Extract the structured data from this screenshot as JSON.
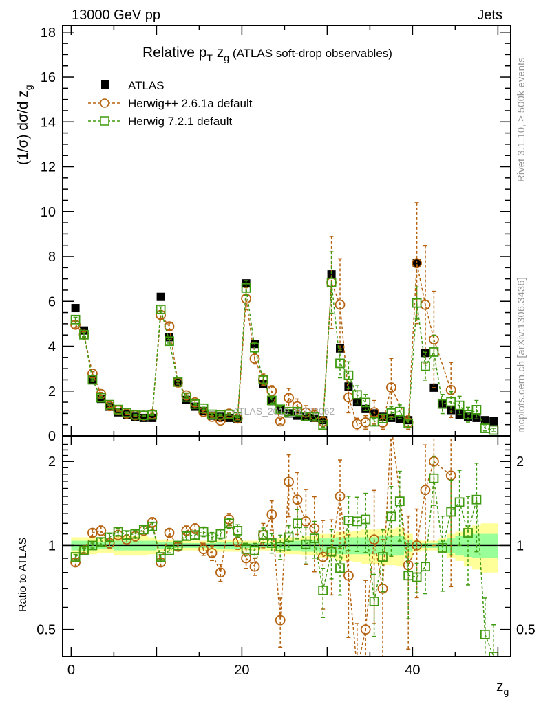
{
  "header": {
    "left": "13000 GeV pp",
    "right": "Jets"
  },
  "side_text": {
    "rivet": "Rivet 3.1.10, ≥ 500k events",
    "mcplots": "mcplots.cern.ch [arXiv:1306.3436]"
  },
  "watermark": "ATLAS_2019_I1772062",
  "chart_data": {
    "type": "scatter",
    "title": {
      "main": "Relative p",
      "sub_T": "T",
      "zg": " z",
      "sub_g": "g",
      "rest": " (ATLAS soft-drop observables)"
    },
    "xlabel": {
      "main": "z",
      "sub": "g"
    },
    "ylabel": {
      "main": "(1/σ) dσ/d z",
      "sub": "g"
    },
    "ratio_ylabel": "Ratio to ATLAS",
    "xlim": [
      -1,
      51.5
    ],
    "ylim": [
      0,
      18.3
    ],
    "ratio_ylim": [
      0.4,
      2.47
    ],
    "ratio_scale": "log",
    "x_ticks": [
      "0",
      "20",
      "40"
    ],
    "y_ticks": [
      "0",
      "2",
      "4",
      "6",
      "8",
      "10",
      "12",
      "14",
      "16",
      "18"
    ],
    "ratio_ticks": [
      "0.5",
      "1",
      "2"
    ],
    "legend_position": "top-left",
    "x": [
      0.5,
      1.5,
      2.5,
      3.5,
      4.5,
      5.5,
      6.5,
      7.5,
      8.5,
      9.5,
      10.5,
      11.5,
      12.5,
      13.5,
      14.5,
      15.5,
      16.5,
      17.5,
      18.5,
      19.5,
      20.5,
      21.5,
      22.5,
      23.5,
      24.5,
      25.5,
      26.5,
      27.5,
      28.5,
      29.5,
      30.5,
      31.5,
      32.5,
      33.5,
      34.5,
      35.5,
      36.5,
      37.5,
      38.5,
      39.5,
      40.5,
      41.5,
      42.5,
      43.5,
      44.5,
      45.5,
      46.5,
      47.5,
      48.5,
      49.5
    ],
    "data": {
      "name": "ATLAS",
      "values": [
        5.7,
        4.7,
        2.5,
        1.65,
        1.3,
        1.05,
        0.95,
        0.85,
        0.8,
        0.8,
        6.2,
        4.4,
        2.4,
        1.6,
        1.3,
        1.1,
        0.9,
        0.85,
        0.8,
        0.75,
        6.8,
        4.1,
        2.3,
        1.55,
        1.2,
        1.0,
        0.9,
        0.85,
        0.8,
        0.7,
        7.2,
        3.9,
        2.2,
        1.5,
        1.2,
        1.0,
        0.85,
        0.8,
        0.75,
        0.7,
        7.7,
        3.7,
        2.15,
        1.45,
        1.15,
        0.95,
        0.85,
        0.8,
        0.7,
        0.65
      ],
      "total_rel_err": [
        0.07,
        0.07,
        0.07,
        0.06,
        0.06,
        0.08,
        0.08,
        0.08,
        0.08,
        0.07,
        0.05,
        0.05,
        0.04,
        0.04,
        0.04,
        0.04,
        0.04,
        0.05,
        0.05,
        0.05,
        0.04,
        0.04,
        0.04,
        0.04,
        0.06,
        0.07,
        0.07,
        0.08,
        0.08,
        0.1,
        0.1,
        0.12,
        0.12,
        0.13,
        0.14,
        0.14,
        0.15,
        0.15,
        0.16,
        0.1,
        0.05,
        0.04,
        0.04,
        0.06,
        0.1,
        0.12,
        0.16,
        0.18,
        0.2,
        0.2
      ],
      "stat_rel_err": [
        0.04,
        0.04,
        0.04,
        0.03,
        0.03,
        0.04,
        0.04,
        0.04,
        0.04,
        0.04,
        0.03,
        0.03,
        0.02,
        0.02,
        0.02,
        0.02,
        0.02,
        0.03,
        0.03,
        0.03,
        0.02,
        0.02,
        0.02,
        0.02,
        0.03,
        0.04,
        0.04,
        0.05,
        0.05,
        0.06,
        0.06,
        0.07,
        0.07,
        0.07,
        0.07,
        0.07,
        0.08,
        0.08,
        0.08,
        0.05,
        0.03,
        0.02,
        0.02,
        0.04,
        0.06,
        0.08,
        0.09,
        0.1,
        0.1,
        0.1
      ],
      "color": "#000000"
    },
    "series": [
      {
        "name": "Herwig++ 2.6.1a default",
        "color": "#b5620f",
        "marker": "circle",
        "ratio": [
          0.87,
          0.96,
          1.11,
          1.13,
          1.02,
          1.09,
          1.05,
          1.08,
          1.13,
          1.21,
          0.87,
          1.11,
          0.99,
          1.13,
          1.15,
          0.97,
          0.94,
          0.8,
          1.24,
          1.03,
          0.9,
          0.84,
          1.09,
          1.29,
          0.54,
          1.69,
          1.46,
          1.22,
          1.15,
          0.91,
          0.95,
          1.5,
          0.78,
          0.35,
          0.5,
          1.05,
          0.7,
          2.7,
          null,
          0.85,
          1.0,
          1.58,
          2.0,
          null,
          1.78,
          null,
          null,
          null,
          null,
          null
        ],
        "rel_err": [
          0.03,
          0.03,
          0.03,
          0.04,
          0.04,
          0.04,
          0.04,
          0.04,
          0.04,
          0.04,
          0.03,
          0.03,
          0.03,
          0.04,
          0.04,
          0.05,
          0.06,
          0.07,
          0.05,
          0.06,
          0.08,
          0.07,
          0.1,
          0.12,
          0.2,
          0.25,
          0.25,
          0.3,
          0.3,
          0.35,
          0.3,
          0.35,
          0.4,
          0.5,
          0.5,
          0.5,
          0.5,
          0.6,
          0.6,
          0.5,
          0.35,
          0.45,
          0.5,
          0.5,
          0.6,
          0.6,
          0.6,
          0.6,
          0.6,
          0.6
        ]
      },
      {
        "name": "Herwig 7.2.1 default",
        "color": "#3f9a0f",
        "marker": "square",
        "ratio": [
          0.91,
          0.96,
          1.0,
          1.03,
          1.07,
          1.12,
          1.09,
          1.1,
          1.14,
          1.17,
          0.91,
          0.96,
          1.0,
          1.08,
          1.09,
          1.12,
          1.07,
          1.1,
          1.2,
          1.13,
          0.97,
          0.96,
          1.09,
          1.02,
          0.99,
          1.07,
          1.2,
          1.01,
          1.06,
          0.69,
          0.95,
          0.83,
          1.23,
          1.22,
          1.24,
          0.63,
          0.91,
          1.27,
          1.44,
          0.78,
          0.77,
          0.84,
          1.74,
          0.98,
          1.32,
          1.43,
          1.11,
          1.46,
          0.48,
          0.4
        ],
        "rel_err": [
          0.02,
          0.02,
          0.02,
          0.03,
          0.03,
          0.03,
          0.03,
          0.03,
          0.03,
          0.03,
          0.02,
          0.02,
          0.03,
          0.03,
          0.03,
          0.04,
          0.04,
          0.04,
          0.04,
          0.05,
          0.05,
          0.06,
          0.06,
          0.08,
          0.1,
          0.1,
          0.12,
          0.15,
          0.15,
          0.2,
          0.2,
          0.2,
          0.22,
          0.22,
          0.24,
          0.25,
          0.25,
          0.28,
          0.28,
          0.3,
          0.12,
          0.2,
          0.2,
          0.3,
          0.3,
          0.3,
          0.35,
          0.35,
          0.35,
          0.3
        ]
      }
    ]
  }
}
